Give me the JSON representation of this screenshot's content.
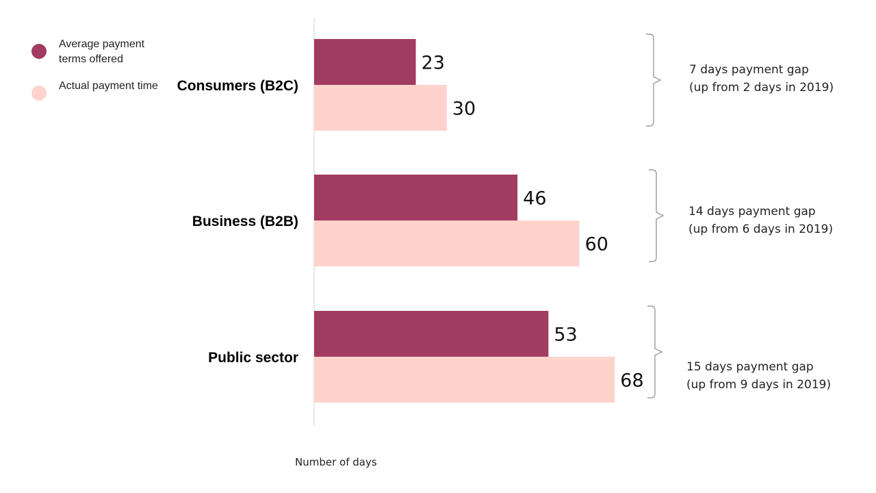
{
  "chart_data": {
    "type": "bar",
    "orientation": "horizontal",
    "categories": [
      "Consumers (B2C)",
      "Business (B2B)",
      "Public sector"
    ],
    "series": [
      {
        "name": "Average payment terms offered",
        "color": "#a23b62",
        "values": [
          23,
          46,
          53
        ]
      },
      {
        "name": "Actual payment time",
        "color": "#fed3cd",
        "values": [
          30,
          60,
          68
        ]
      }
    ],
    "xlabel": "Number of days",
    "xlim": [
      0,
      100
    ],
    "grid": false,
    "legend": "top-left",
    "annotations": [
      {
        "line1": "7 days payment gap",
        "line2": "(up from 2 days in 2019)"
      },
      {
        "line1": "14 days payment gap",
        "line2": "(up from 6 days in 2019)"
      },
      {
        "line1": "15 days payment gap",
        "line2": "(up from 9 days in 2019)"
      }
    ]
  }
}
